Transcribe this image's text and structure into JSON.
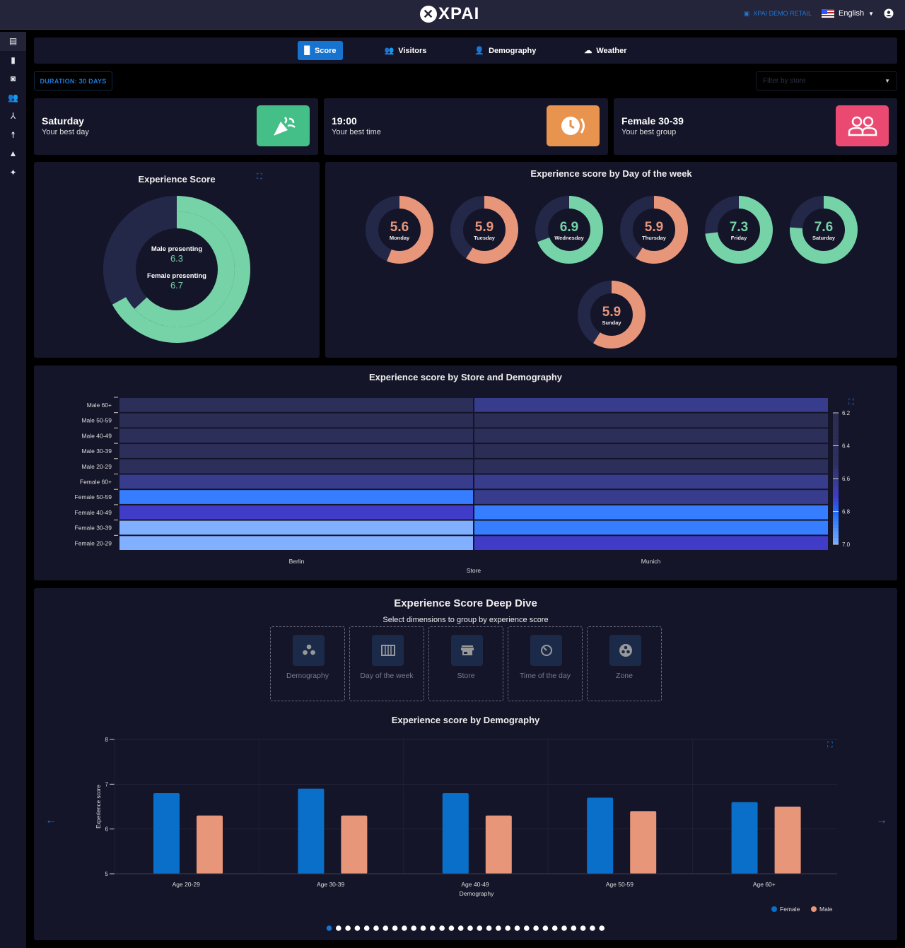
{
  "header": {
    "brand": "XPAI",
    "store_label": "XPAI DEMO RETAIL",
    "language": "English"
  },
  "sidebar": {
    "items": [
      "store-icon",
      "bar-chart-icon",
      "report-icon",
      "people-icon",
      "hub-icon",
      "accessibility-icon",
      "lab-icon",
      "sparkle-icon"
    ]
  },
  "tabs": [
    {
      "label": "Score",
      "icon": "document-icon",
      "active": true
    },
    {
      "label": "Visitors",
      "icon": "groups-icon"
    },
    {
      "label": "Demography",
      "icon": "people-icon"
    },
    {
      "label": "Weather",
      "icon": "cloud-icon"
    }
  ],
  "duration_label": "DURATION: 30 DAYS",
  "filter": {
    "placeholder": "Filter by store"
  },
  "kpis": [
    {
      "title": "Saturday",
      "subtitle": "Your best day",
      "icon": "party-popper-icon",
      "color": "#44bf87"
    },
    {
      "title": "19:00",
      "subtitle": "Your best time",
      "icon": "clock-icon",
      "color": "#e8944e"
    },
    {
      "title": "Female 30-39",
      "subtitle": "Your best group",
      "icon": "group-icon",
      "color": "#ea4a72"
    }
  ],
  "experience_score": {
    "title": "Experience Score",
    "male_label": "Male presenting",
    "male_value": "6.3",
    "female_label": "Female presenting",
    "female_value": "6.7",
    "max": 10
  },
  "colors": {
    "good": "#76d3a8",
    "bad": "#e8967a",
    "track": "#232848",
    "female": "#0a6fc8",
    "male": "#e8967a"
  },
  "day_of_week": {
    "title": "Experience score by Day of the week",
    "days": [
      {
        "day": "Monday",
        "value": 5.6
      },
      {
        "day": "Tuesday",
        "value": 5.9
      },
      {
        "day": "Wednesday",
        "value": 6.9
      },
      {
        "day": "Thursday",
        "value": 5.9
      },
      {
        "day": "Friday",
        "value": 7.3
      },
      {
        "day": "Saturday",
        "value": 7.6
      },
      {
        "day": "Sunday",
        "value": 5.9
      }
    ]
  },
  "chart_data": [
    {
      "type": "heatmap",
      "title": "Experience score by Store and Demography",
      "xlabel": "Store",
      "ylabel": "",
      "x": [
        "Berlin",
        "Munich"
      ],
      "y": [
        "Male 60+",
        "Male 50-59",
        "Male 40-49",
        "Male 30-39",
        "Male 20-29",
        "Female 60+",
        "Female 50-59",
        "Female 40-49",
        "Female 30-39",
        "Female 20-29"
      ],
      "z": [
        [
          6.4,
          6.6
        ],
        [
          6.3,
          6.3
        ],
        [
          6.4,
          6.4
        ],
        [
          6.4,
          6.3
        ],
        [
          6.4,
          6.4
        ],
        [
          6.6,
          6.6
        ],
        [
          6.85,
          6.6
        ],
        [
          6.7,
          6.85
        ],
        [
          7.0,
          6.85
        ],
        [
          7.0,
          6.7
        ]
      ],
      "colorbar": {
        "range": [
          6.2,
          7.0
        ],
        "ticks": [
          "6.2",
          "6.4",
          "6.6",
          "6.8",
          "7.0"
        ]
      }
    },
    {
      "type": "bar",
      "title": "Experience score by Demography",
      "xlabel": "Demography",
      "ylabel": "Experience score",
      "ylim": [
        5,
        8
      ],
      "yticks": [
        "5",
        "6",
        "7",
        "8"
      ],
      "categories": [
        "Age 20-29",
        "Age 30-39",
        "Age 40-49",
        "Age 50-59",
        "Age 60+"
      ],
      "series": [
        {
          "name": "Female",
          "values": [
            6.8,
            6.9,
            6.8,
            6.7,
            6.6
          ]
        },
        {
          "name": "Male",
          "values": [
            6.3,
            6.3,
            6.3,
            6.4,
            6.5
          ]
        }
      ],
      "legend": "bottom-right"
    }
  ],
  "deep_dive": {
    "title": "Experience Score Deep Dive",
    "subtitle": "Select dimensions to group by experience score",
    "dimensions": [
      {
        "label": "Demography",
        "icon": "bubbles-icon"
      },
      {
        "label": "Day of the week",
        "icon": "calendar-week-icon"
      },
      {
        "label": "Store",
        "icon": "store-icon"
      },
      {
        "label": "Time of the day",
        "icon": "timer-icon"
      },
      {
        "label": "Zone",
        "icon": "zone-icon"
      }
    ],
    "pages": 30,
    "current_page": 1
  }
}
